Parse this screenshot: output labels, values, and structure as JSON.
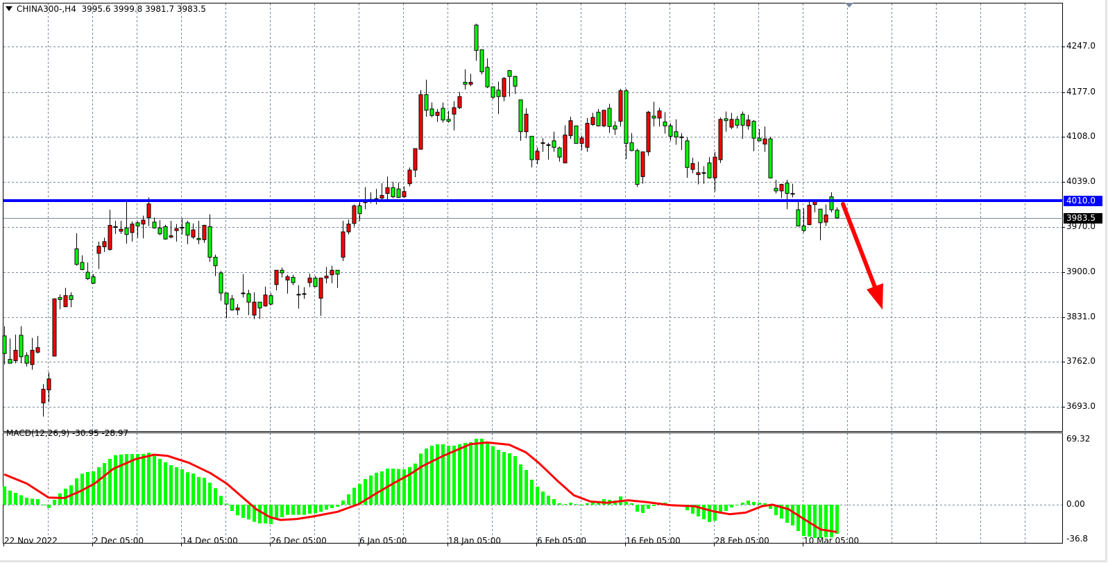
{
  "header": {
    "symbol": "CHINA300-,H4",
    "ohlc": "3995.6 3999.8 3981.7 3983.5"
  },
  "indicator": {
    "label": "MACD(12,26,9) -30.95 -28.97"
  },
  "colors": {
    "bull": "#ff0000",
    "bear": "#00ff00",
    "grid": "#778899",
    "support_line": "#0000ff",
    "macd_hist": "#00ff00",
    "macd_signal": "#ff0000",
    "arrow": "#ff0000"
  },
  "price_axis": {
    "labels": [
      "4247.0",
      "4177.0",
      "4108.0",
      "4039.0",
      "3970.0",
      "3900.0",
      "3831.0",
      "3762.0",
      "3693.0"
    ],
    "ylim": [
      3693,
      4247
    ]
  },
  "support_level": {
    "value": 4010.0,
    "label": "4010.0"
  },
  "current_price": {
    "value": 3983.5,
    "label": "3983.5"
  },
  "macd_axis": {
    "labels": [
      "69.32",
      "0.00",
      "-36.8"
    ],
    "ylim": [
      -36.8,
      69.32
    ]
  },
  "time_axis": [
    {
      "bar": 0,
      "label": "22 Nov 2022"
    },
    {
      "bar": 16,
      "label": "2 Dec 05:00"
    },
    {
      "bar": 32,
      "label": "14 Dec 05:00"
    },
    {
      "bar": 48,
      "label": "26 Dec 05:00"
    },
    {
      "bar": 64,
      "label": "6 Jan 05:00"
    },
    {
      "bar": 80,
      "label": "18 Jan 05:00"
    },
    {
      "bar": 96,
      "label": "6 Feb 05:00"
    },
    {
      "bar": 112,
      "label": "16 Feb 05:00"
    },
    {
      "bar": 128,
      "label": "28 Feb 05:00"
    },
    {
      "bar": 144,
      "label": "10 Mar 05:00"
    }
  ],
  "annotation": {
    "type": "arrow",
    "direction": "down"
  },
  "chart_data": {
    "type": "candlestick",
    "ohlc": [
      [
        3802,
        3817,
        3758,
        3775
      ],
      [
        3766,
        3798,
        3760,
        3760
      ],
      [
        3764,
        3804,
        3760,
        3780
      ],
      [
        3803,
        3817,
        3760,
        3770
      ],
      [
        3772,
        3777,
        3755,
        3760
      ],
      [
        3758,
        3799,
        3750,
        3780
      ],
      [
        3777,
        3802,
        3775,
        3784
      ],
      [
        3699,
        3728,
        3678,
        3720
      ],
      [
        3719,
        3746,
        3700,
        3736
      ],
      [
        3771,
        3859,
        3771,
        3859
      ],
      [
        3861,
        3866,
        3843,
        3858
      ],
      [
        3847,
        3876,
        3846,
        3864
      ],
      [
        3864,
        3869,
        3846,
        3858
      ],
      [
        3936,
        3960,
        3910,
        3912
      ],
      [
        3915,
        3926,
        3903,
        3904
      ],
      [
        3900,
        3915,
        3888,
        3890
      ],
      [
        3893,
        3897,
        3882,
        3883
      ],
      [
        3929,
        3947,
        3905,
        3940
      ],
      [
        3939,
        3953,
        3931,
        3947
      ],
      [
        3935,
        3996,
        3933,
        3972
      ],
      [
        3970,
        3979,
        3959,
        3969
      ],
      [
        3963,
        3979,
        3959,
        3966
      ],
      [
        3968,
        4009,
        3944,
        3958
      ],
      [
        3961,
        3978,
        3947,
        3974
      ],
      [
        3976,
        3978,
        3953,
        3971
      ],
      [
        3974,
        3987,
        3952,
        3980
      ],
      [
        3984,
        4015,
        3971,
        4005
      ],
      [
        3977,
        3984,
        3967,
        3968
      ],
      [
        3968,
        3980,
        3957,
        3959
      ],
      [
        3970,
        3973,
        3950,
        3951
      ],
      [
        3954,
        3979,
        3952,
        3956
      ],
      [
        3964,
        3974,
        3947,
        3967
      ],
      [
        3969,
        3983,
        3958,
        3968
      ],
      [
        3976,
        3979,
        3943,
        3957
      ],
      [
        3954,
        3975,
        3951,
        3965
      ],
      [
        3952,
        3979,
        3943,
        3950
      ],
      [
        3950,
        3973,
        3945,
        3972
      ],
      [
        3970,
        3989,
        3916,
        3923
      ],
      [
        3923,
        3927,
        3894,
        3910
      ],
      [
        3899,
        3902,
        3856,
        3868
      ],
      [
        3868,
        3868,
        3829,
        3851
      ],
      [
        3859,
        3865,
        3841,
        3842
      ],
      [
        3842,
        3851,
        3834,
        3845
      ],
      [
        3868,
        3897,
        3861,
        3867
      ],
      [
        3867,
        3873,
        3834,
        3854
      ],
      [
        3834,
        3869,
        3828,
        3854
      ],
      [
        3854,
        3854,
        3828,
        3845
      ],
      [
        3848,
        3878,
        3847,
        3865
      ],
      [
        3864,
        3868,
        3849,
        3851
      ],
      [
        3881,
        3903,
        3872,
        3903
      ],
      [
        3903,
        3907,
        3892,
        3899
      ],
      [
        3888,
        3896,
        3867,
        3893
      ],
      [
        3892,
        3896,
        3880,
        3884
      ],
      [
        3866,
        3880,
        3844,
        3866
      ],
      [
        3867,
        3877,
        3859,
        3867
      ],
      [
        3884,
        3898,
        3877,
        3891
      ],
      [
        3891,
        3894,
        3877,
        3878
      ],
      [
        3860,
        3891,
        3833,
        3891
      ],
      [
        3891,
        3908,
        3883,
        3894
      ],
      [
        3896,
        3910,
        3883,
        3903
      ],
      [
        3903,
        3903,
        3876,
        3897
      ],
      [
        3923,
        3979,
        3917,
        3962
      ],
      [
        3962,
        3981,
        3958,
        3974
      ],
      [
        3975,
        4004,
        3970,
        4002
      ],
      [
        4002,
        4008,
        3979,
        3990
      ],
      [
        4007,
        4031,
        3997,
        4010
      ],
      [
        4012,
        4023,
        4006,
        4012
      ],
      [
        4012,
        4028,
        4004,
        4013
      ],
      [
        4014,
        4037,
        4012,
        4018
      ],
      [
        4021,
        4047,
        4012,
        4030
      ],
      [
        4030,
        4039,
        4014,
        4016
      ],
      [
        4028,
        4038,
        4014,
        4015
      ],
      [
        4016,
        4032,
        4014,
        4024
      ],
      [
        4036,
        4061,
        4032,
        4057
      ],
      [
        4057,
        4090,
        4046,
        4090
      ],
      [
        4089,
        4180,
        4089,
        4173
      ],
      [
        4173,
        4196,
        4139,
        4149
      ],
      [
        4151,
        4161,
        4138,
        4141
      ],
      [
        4141,
        4151,
        4131,
        4146
      ],
      [
        4152,
        4161,
        4130,
        4134
      ],
      [
        4135,
        4148,
        4130,
        4132
      ],
      [
        4143,
        4163,
        4118,
        4153
      ],
      [
        4153,
        4177,
        4151,
        4170
      ],
      [
        4192,
        4212,
        4181,
        4189
      ],
      [
        4189,
        4205,
        4186,
        4192
      ],
      [
        4280,
        4282,
        4225,
        4241
      ],
      [
        4242,
        4242,
        4204,
        4208
      ],
      [
        4215,
        4229,
        4183,
        4185
      ],
      [
        4185,
        4185,
        4166,
        4169
      ],
      [
        4180,
        4193,
        4143,
        4170
      ],
      [
        4170,
        4200,
        4163,
        4198
      ],
      [
        4210,
        4211,
        4170,
        4201
      ],
      [
        4201,
        4202,
        4174,
        4186
      ],
      [
        4165,
        4165,
        4102,
        4116
      ],
      [
        4116,
        4152,
        4106,
        4143
      ],
      [
        4109,
        4109,
        4061,
        4073
      ],
      [
        4073,
        4092,
        4066,
        4086
      ],
      [
        4099,
        4106,
        4085,
        4098
      ],
      [
        4096,
        4099,
        4073,
        4095
      ],
      [
        4102,
        4116,
        4085,
        4092
      ],
      [
        4091,
        4093,
        4070,
        4077
      ],
      [
        4068,
        4126,
        4068,
        4111
      ],
      [
        4110,
        4139,
        4105,
        4133
      ],
      [
        4125,
        4125,
        4098,
        4098
      ],
      [
        4098,
        4110,
        4088,
        4106
      ],
      [
        4092,
        4137,
        4085,
        4129
      ],
      [
        4127,
        4145,
        4125,
        4138
      ],
      [
        4146,
        4151,
        4124,
        4125
      ],
      [
        4125,
        4149,
        4123,
        4149
      ],
      [
        4152,
        4159,
        4114,
        4124
      ],
      [
        4125,
        4132,
        4111,
        4120
      ],
      [
        4132,
        4182,
        4124,
        4179
      ],
      [
        4179,
        4182,
        4074,
        4098
      ],
      [
        4099,
        4114,
        4086,
        4087
      ],
      [
        4087,
        4090,
        4031,
        4035
      ],
      [
        4047,
        4085,
        4036,
        4085
      ],
      [
        4085,
        4148,
        4079,
        4146
      ],
      [
        4140,
        4162,
        4124,
        4137
      ],
      [
        4137,
        4153,
        4124,
        4148
      ],
      [
        4131,
        4146,
        4113,
        4125
      ],
      [
        4125,
        4129,
        4102,
        4109
      ],
      [
        4116,
        4135,
        4096,
        4108
      ],
      [
        4108,
        4114,
        4088,
        4107
      ],
      [
        4102,
        4107,
        4045,
        4061
      ],
      [
        4058,
        4076,
        4052,
        4067
      ],
      [
        4050,
        4070,
        4035,
        4053
      ],
      [
        4053,
        4063,
        4036,
        4052
      ],
      [
        4068,
        4077,
        4044,
        4045
      ],
      [
        4045,
        4085,
        4024,
        4077
      ],
      [
        4073,
        4138,
        4068,
        4135
      ],
      [
        4136,
        4147,
        4116,
        4133
      ],
      [
        4123,
        4145,
        4120,
        4135
      ],
      [
        4135,
        4140,
        4121,
        4126
      ],
      [
        4143,
        4147,
        4105,
        4126
      ],
      [
        4125,
        4142,
        4119,
        4134
      ],
      [
        4132,
        4134,
        4086,
        4106
      ],
      [
        4106,
        4120,
        4101,
        4102
      ],
      [
        4097,
        4124,
        4085,
        4105
      ],
      [
        4105,
        4108,
        4044,
        4045
      ],
      [
        4029,
        4042,
        4021,
        4025
      ],
      [
        4025,
        4036,
        4014,
        4035
      ],
      [
        4037,
        4042,
        3997,
        4021
      ],
      [
        4021,
        4036,
        4015,
        4020
      ],
      [
        3996,
        4009,
        3971,
        3971
      ],
      [
        3971,
        3998,
        3961,
        3964
      ],
      [
        3973,
        4009,
        3973,
        4003
      ],
      [
        4004,
        4010,
        3992,
        4009
      ],
      [
        3997,
        3997,
        3949,
        3976
      ],
      [
        3977,
        4004,
        3971,
        3988
      ],
      [
        4016,
        4023,
        3992,
        3996
      ],
      [
        3995.6,
        3999.8,
        3981.7,
        3983.5
      ]
    ],
    "macd_histogram": [
      19.4,
      15,
      12.5,
      10,
      7.4,
      6.4,
      5.9,
      0.2,
      -3.4,
      5.2,
      12,
      17,
      20.6,
      28,
      33,
      34.7,
      35.4,
      39.8,
      44.2,
      48.7,
      52.6,
      53.3,
      53.8,
      53.8,
      53.8,
      53.8,
      55.3,
      51.9,
      48.7,
      45,
      42,
      39.8,
      37.6,
      34.4,
      33.2,
      29.3,
      28.5,
      23.4,
      17.5,
      9.3,
      1.2,
      -6.6,
      -11.3,
      -14,
      -15.7,
      -18.2,
      -19.9,
      -19.9,
      -20.6,
      -15,
      -13.3,
      -10.8,
      -10.8,
      -10.8,
      -10.8,
      -9.6,
      -9.1,
      -7.6,
      -5.4,
      -3.7,
      -2.2,
      4.4,
      11,
      18,
      22,
      27.3,
      31,
      34,
      35.4,
      38.3,
      38.3,
      37.9,
      37.6,
      40,
      43.7,
      54.3,
      59.7,
      62.7,
      64.2,
      64.2,
      62.7,
      62.7,
      64.2,
      65.6,
      66.4,
      70,
      70,
      67.1,
      62,
      58.3,
      56,
      54.6,
      51.6,
      42.8,
      36.9,
      26.5,
      19.2,
      14,
      9.6,
      5.9,
      1.5,
      0.7,
      2.2,
      0.7,
      0,
      1.5,
      2.2,
      3.7,
      5.9,
      5.2,
      4.4,
      8.8,
      2.9,
      1.5,
      -7.4,
      -8.8,
      -4.4,
      -1.5,
      2.2,
      2.2,
      0,
      -0.7,
      -0.7,
      -5.9,
      -9.6,
      -12.5,
      -15.5,
      -18.4,
      -17,
      -9.6,
      -6.6,
      -2.9,
      0,
      2.2,
      4.4,
      2.9,
      2.2,
      1.5,
      -4.4,
      -11.1,
      -14.7,
      -19.2,
      -22.1,
      -28,
      -33.2,
      -33.9,
      -35.4,
      -35.4,
      -34.7,
      -34.7,
      -30.95
    ],
    "macd_signal": [
      [
        0,
        32.2
      ],
      [
        4.1,
        22.4
      ],
      [
        8,
        7.6
      ],
      [
        10.9,
        7.1
      ],
      [
        13.8,
        14.5
      ],
      [
        16.3,
        22.4
      ],
      [
        19.7,
        38.3
      ],
      [
        23.6,
        48.2
      ],
      [
        27,
        53.1
      ],
      [
        29.4,
        51.9
      ],
      [
        33.3,
        44.5
      ],
      [
        37.2,
        33.4
      ],
      [
        40.1,
        22.4
      ],
      [
        43,
        7.6
      ],
      [
        45.4,
        -4.7
      ],
      [
        47.9,
        -13.3
      ],
      [
        49.8,
        -16.2
      ],
      [
        52.7,
        -15.2
      ],
      [
        55.6,
        -12.5
      ],
      [
        60,
        -7.6
      ],
      [
        63.9,
        0.7
      ],
      [
        67.3,
        13
      ],
      [
        70.2,
        22.9
      ],
      [
        73.1,
        32.2
      ],
      [
        75.3,
        40.8
      ],
      [
        79.1,
        51.9
      ],
      [
        84,
        64.2
      ],
      [
        87,
        66.1
      ],
      [
        91,
        63.7
      ],
      [
        94,
        55.6
      ],
      [
        96.3,
        44.5
      ],
      [
        99.8,
        24.8
      ],
      [
        102.6,
        10.1
      ],
      [
        105.6,
        3.4
      ],
      [
        108.6,
        2
      ],
      [
        112.4,
        4.7
      ],
      [
        115.7,
        2.7
      ],
      [
        120.1,
        -0.5
      ],
      [
        124.4,
        -1.7
      ],
      [
        127.8,
        -7.1
      ],
      [
        130.7,
        -10.1
      ],
      [
        133.6,
        -8.4
      ],
      [
        136.5,
        -1.7
      ],
      [
        138.4,
        0
      ],
      [
        141.3,
        -4.7
      ],
      [
        144.2,
        -15.7
      ],
      [
        147.1,
        -26.3
      ],
      [
        150,
        -28.97
      ]
    ]
  }
}
